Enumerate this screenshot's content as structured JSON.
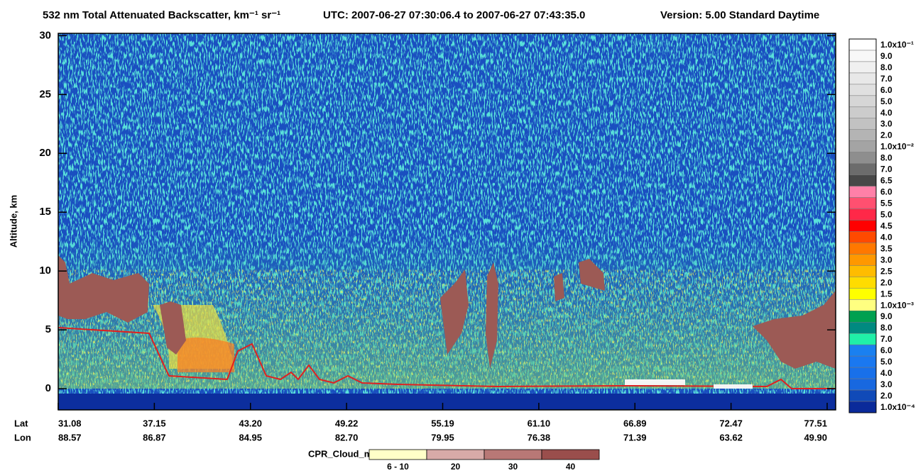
{
  "chart_data": {
    "type": "heatmap",
    "title": "532 nm Total Attenuated Backscatter, km⁻¹ sr⁻¹",
    "time_range": "UTC:  2007-06-27 07:30:06.4  to  2007-06-27 07:43:35.0",
    "version": "Version: 5.00  Standard  Daytime",
    "y_label": "Altitude, km",
    "ylim": [
      -1.8,
      30.2
    ],
    "yticks": [
      0,
      5,
      10,
      15,
      20,
      25,
      30
    ],
    "x_rows": [
      {
        "name": "Lat",
        "labels": [
          "31.08",
          "37.15",
          "43.20",
          "49.22",
          "55.19",
          "61.10",
          "66.89",
          "72.47",
          "77.51"
        ]
      },
      {
        "name": "Lon",
        "labels": [
          "88.57",
          "86.87",
          "84.95",
          "82.70",
          "79.95",
          "76.38",
          "71.39",
          "63.62",
          "49.90"
        ]
      }
    ],
    "colorbar": {
      "labels": [
        "1.0x10⁻¹",
        "9.0",
        "8.0",
        "7.0",
        "6.0",
        "5.0",
        "4.0",
        "3.0",
        "2.0",
        "1.0x10⁻²",
        "8.0",
        "7.0",
        "6.5",
        "6.0",
        "5.5",
        "5.0",
        "4.5",
        "4.0",
        "3.5",
        "3.0",
        "2.5",
        "2.0",
        "1.5",
        "1.0x10⁻³",
        "9.0",
        "8.0",
        "7.0",
        "6.0",
        "5.0",
        "4.0",
        "3.0",
        "2.0",
        "1.0x10⁻⁴"
      ],
      "colors": [
        "#ffffff",
        "#f8f8f8",
        "#f0f0f0",
        "#e8e8e8",
        "#e0e0e0",
        "#d6d6d6",
        "#cccccc",
        "#c2c2c2",
        "#b4b4b4",
        "#a4a4a4",
        "#8e8e8e",
        "#6c6c6c",
        "#484848",
        "#ff80a8",
        "#ff5070",
        "#ff2848",
        "#ff0000",
        "#ff4a00",
        "#ff7800",
        "#ff9800",
        "#ffbc00",
        "#ffdc00",
        "#ffff00",
        "#ffff80",
        "#00a050",
        "#008a80",
        "#20f0a8",
        "#1a80f0",
        "#1a78f0",
        "#1870ea",
        "#1868e0",
        "#104ab8",
        "#0a2a9a"
      ]
    },
    "cloud_mask": {
      "label": "CPR_Cloud_mask",
      "labels": [
        "6 - 10",
        "20",
        "30",
        "40"
      ],
      "colors": [
        "#ffffc8",
        "#d8aaa8",
        "#b87876",
        "#9a4e4c"
      ]
    }
  }
}
